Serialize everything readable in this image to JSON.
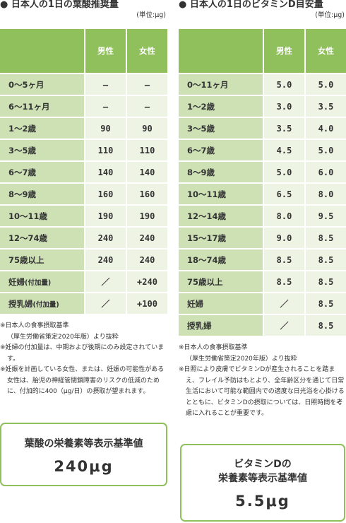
{
  "folic": {
    "title": "● 日本人の1日の葉酸推奨量",
    "unit": "(単位:μg)",
    "header": {
      "male": "男性",
      "female": "女性"
    },
    "rows": [
      {
        "label": "0〜5ヶ月",
        "sub": "",
        "male": "—",
        "female": "—"
      },
      {
        "label": "6〜11ヶ月",
        "sub": "",
        "male": "—",
        "female": "—"
      },
      {
        "label": "1〜2歳",
        "sub": "",
        "male": "90",
        "female": "90"
      },
      {
        "label": "3〜5歳",
        "sub": "",
        "male": "110",
        "female": "110"
      },
      {
        "label": "6〜7歳",
        "sub": "",
        "male": "140",
        "female": "140"
      },
      {
        "label": "8〜9歳",
        "sub": "",
        "male": "160",
        "female": "160"
      },
      {
        "label": "10〜11歳",
        "sub": "",
        "male": "190",
        "female": "190"
      },
      {
        "label": "12〜74歳",
        "sub": "",
        "male": "240",
        "female": "240"
      },
      {
        "label": "75歳以上",
        "sub": "",
        "male": "240",
        "female": "240"
      },
      {
        "label": "妊婦",
        "sub": "(付加量)",
        "male": "／",
        "female": "+240"
      },
      {
        "label": "授乳婦",
        "sub": "(付加量)",
        "male": "／",
        "female": "+100"
      }
    ],
    "notes": [
      "※日本人の食事摂取基準\n（厚生労働省策定2020年版）より抜粋",
      "※妊婦の付加量は、中期および後期にのみ設定されています。",
      "※妊娠を計画している女性、または、妊娠の可能性がある女性は、胎児の神経管閉鎖障害のリスクの低減のために、付加的に400（μg/日）の摂取が望まれます。"
    ],
    "box_title": "葉酸の栄養素等表示基準値",
    "box_value": "240μg"
  },
  "vitd": {
    "title": "● 日本人の1日のビタミンD目安量",
    "unit": "(単位:μg)",
    "header": {
      "male": "男性",
      "female": "女性"
    },
    "rows": [
      {
        "label": "0〜11ヶ月",
        "male": "5.0",
        "female": "5.0"
      },
      {
        "label": "1〜2歳",
        "male": "3.0",
        "female": "3.5"
      },
      {
        "label": "3〜5歳",
        "male": "3.5",
        "female": "4.0"
      },
      {
        "label": "6〜7歳",
        "male": "4.5",
        "female": "5.0"
      },
      {
        "label": "8〜9歳",
        "male": "5.0",
        "female": "6.0"
      },
      {
        "label": "10〜11歳",
        "male": "6.5",
        "female": "8.0"
      },
      {
        "label": "12〜14歳",
        "male": "8.0",
        "female": "9.5"
      },
      {
        "label": "15〜17歳",
        "male": "9.0",
        "female": "8.5"
      },
      {
        "label": "18〜74歳",
        "male": "8.5",
        "female": "8.5"
      },
      {
        "label": "75歳以上",
        "male": "8.5",
        "female": "8.5"
      },
      {
        "label": "妊婦",
        "male": "／",
        "female": "8.5"
      },
      {
        "label": "授乳婦",
        "male": "／",
        "female": "8.5"
      }
    ],
    "notes": [
      "※日本人の食事摂取基準\n（厚生労働省策定2020年版）より抜粋",
      "※日照により皮膚でビタミンDが産生されることを踏まえ、フレイル予防はもとより、全年齢区分を通じて日常生活において可能な範囲内での適度な日光浴を心掛けるとともに、ビタミンDの摂取については、日照時間を考慮に入れることが重要です。"
    ],
    "box_title_1": "ビタミンDの",
    "box_title_2": "栄養素等表示基準値",
    "box_value": "5.5μg"
  }
}
